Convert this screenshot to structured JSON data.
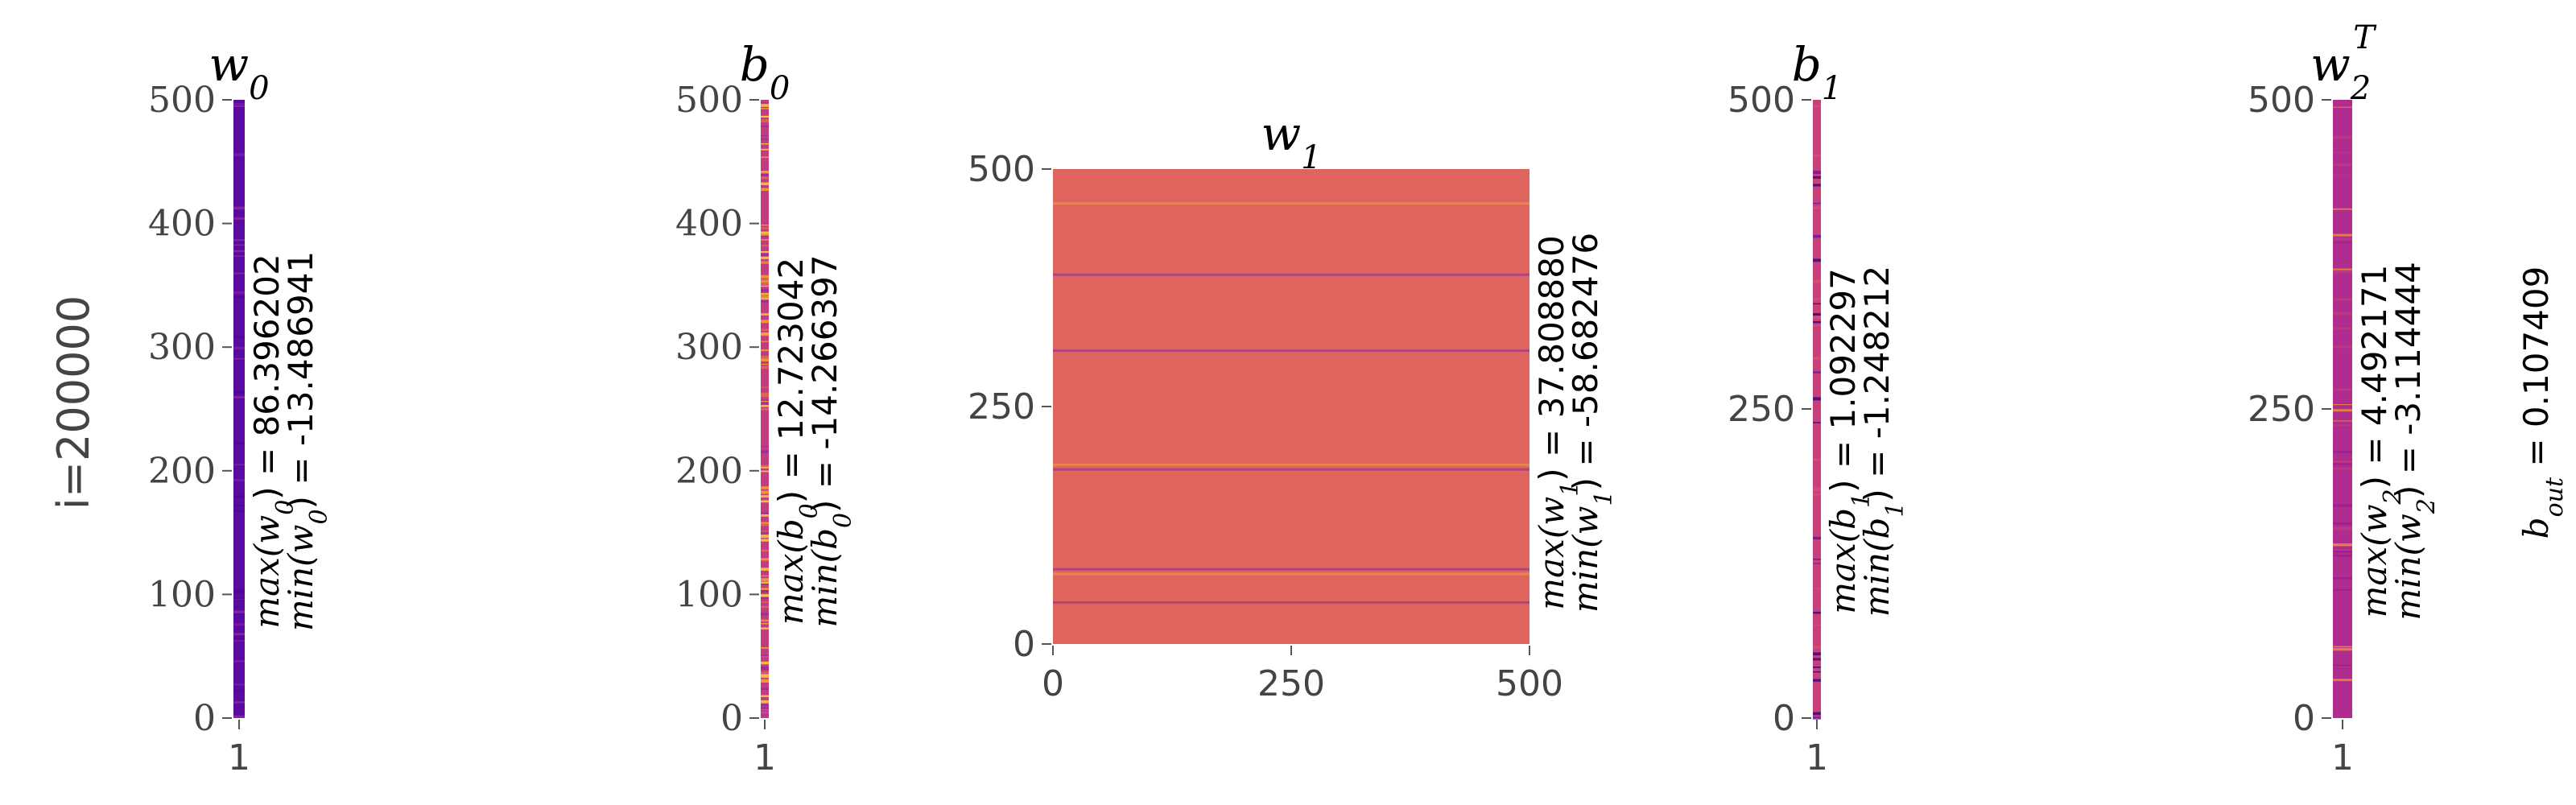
{
  "figure": {
    "row_label": "i=200000",
    "bout_label": "b",
    "bout_sub": "out",
    "bout_value": " = 0.107409"
  },
  "chart_data": [
    {
      "type": "heatmap",
      "title_main": "w",
      "title_sub": "0",
      "title_sup": "",
      "x_ticks": [
        "1"
      ],
      "y_ticks": [
        "0",
        "100",
        "200",
        "300",
        "400",
        "500"
      ],
      "ylim": [
        0,
        500
      ],
      "max_line": [
        "max(w",
        "0",
        ") = 86.396202"
      ],
      "min_line": [
        "min(w",
        "0",
        ") = -13.486941"
      ],
      "colors": {
        "base": "#5a0aa0",
        "accent": "#8a1aa8"
      }
    },
    {
      "type": "heatmap",
      "title_main": "b",
      "title_sub": "0",
      "title_sup": "",
      "x_ticks": [
        "1"
      ],
      "y_ticks": [
        "0",
        "100",
        "200",
        "300",
        "400",
        "500"
      ],
      "ylim": [
        0,
        500
      ],
      "max_line": [
        "max(b",
        "0",
        ") = 12.723042"
      ],
      "min_line": [
        "min(b",
        "0",
        ") = -14.266397"
      ],
      "colors": {
        "base": "#c43c80",
        "accent": "#f5a030"
      }
    },
    {
      "type": "heatmap",
      "title_main": "w",
      "title_sub": "1",
      "title_sup": "",
      "x_ticks": [
        "0",
        "250",
        "500"
      ],
      "y_ticks": [
        "0",
        "250",
        "500"
      ],
      "xlim": [
        0,
        500
      ],
      "ylim": [
        0,
        500
      ],
      "max_line": [
        "max(w",
        "1",
        ") = 37.808880"
      ],
      "min_line": [
        "min(w",
        "1",
        ") = -58.682476"
      ],
      "colors": {
        "base": "#e0645e",
        "accent": "#8a2a9a"
      }
    },
    {
      "type": "heatmap",
      "title_main": "b",
      "title_sub": "1",
      "title_sup": "",
      "x_ticks": [
        "1"
      ],
      "y_ticks": [
        "0",
        "250",
        "500"
      ],
      "ylim": [
        0,
        500
      ],
      "max_line": [
        "max(b",
        "1",
        ") = 1.092297"
      ],
      "min_line": [
        "min(b",
        "1",
        ") = -1.248212"
      ],
      "colors": {
        "base": "#c8407a",
        "accent": "#6a1aa0"
      }
    },
    {
      "type": "heatmap",
      "title_main": "w",
      "title_sub": "2",
      "title_sup": "T",
      "x_ticks": [
        "1"
      ],
      "y_ticks": [
        "0",
        "250",
        "500"
      ],
      "ylim": [
        0,
        500
      ],
      "max_line": [
        "max(w",
        "2",
        ") = 4.492171"
      ],
      "min_line": [
        "min(w",
        "2",
        ") = -3.114444"
      ],
      "colors": {
        "base": "#b02c8e",
        "accent": "#e8903a"
      }
    }
  ]
}
